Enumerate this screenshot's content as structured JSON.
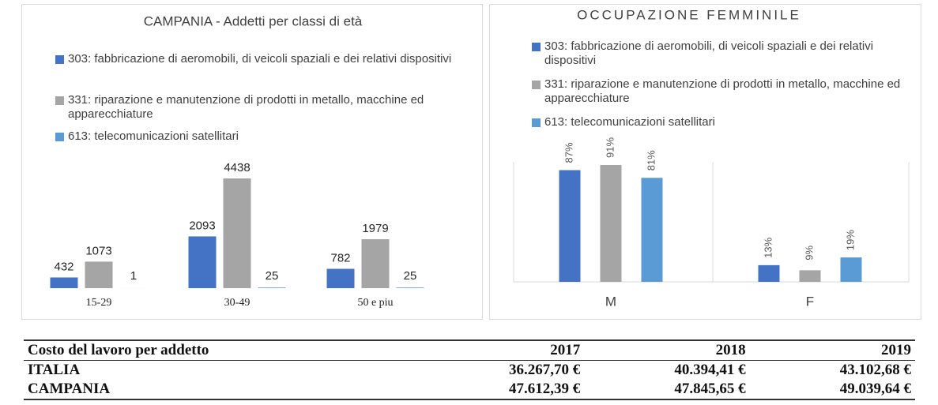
{
  "chart_data": [
    {
      "type": "bar",
      "title": "CAMPANIA - Addetti per classi di età",
      "categories": [
        "15-29",
        "30-49",
        "50 e piu"
      ],
      "series": [
        {
          "name": "303: fabbricazione di aeromobili, di veicoli spaziali e dei relativi dispositivi",
          "color": "#4472c4",
          "values": [
            432,
            2093,
            782
          ]
        },
        {
          "name": "331: riparazione e manutenzione di prodotti in metallo, macchine ed apparecchiature",
          "color": "#a5a5a5",
          "values": [
            1073,
            4438,
            1979
          ]
        },
        {
          "name": "613: telecomunicazioni satellitari",
          "color": "#5b9bd5",
          "values": [
            1,
            25,
            25
          ]
        }
      ]
    },
    {
      "type": "bar",
      "title": "OCCUPAZIONE FEMMINILE",
      "categories": [
        "M",
        "F"
      ],
      "series": [
        {
          "name": "303: fabbricazione di aeromobili, di veicoli spaziali e dei relativi dispositivi",
          "color": "#4472c4",
          "values": [
            87,
            13
          ],
          "value_labels": [
            "87%",
            "13%"
          ]
        },
        {
          "name": "331: riparazione e manutenzione di prodotti in metallo, macchine ed apparecchiature",
          "color": "#a5a5a5",
          "values": [
            91,
            9
          ],
          "value_labels": [
            "91%",
            "9%"
          ]
        },
        {
          "name": "613: telecomunicazioni satellitari",
          "color": "#5b9bd5",
          "values": [
            81,
            19
          ],
          "value_labels": [
            "81%",
            "19%"
          ]
        }
      ]
    }
  ],
  "table": {
    "header": [
      "Costo del lavoro per addetto",
      "2017",
      "2018",
      "2019"
    ],
    "rows": [
      [
        "ITALIA",
        "36.267,70 €",
        "40.394,41 €",
        "43.102,68 €"
      ],
      [
        "CAMPANIA",
        "47.612,39 €",
        "47.845,65 €",
        "49.039,64 €"
      ]
    ]
  }
}
